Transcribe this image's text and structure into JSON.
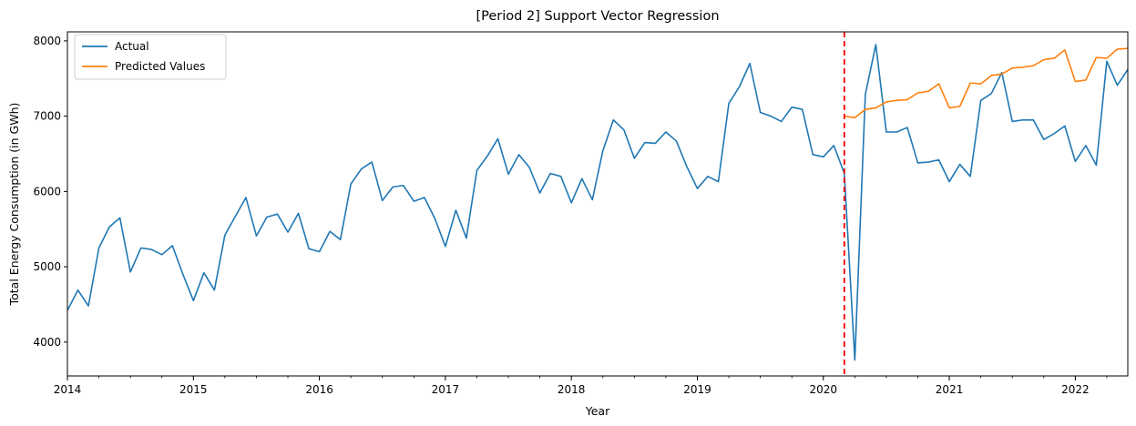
{
  "chart_data": {
    "type": "line",
    "title": "[Period 2] Support Vector Regression",
    "xlabel": "Year",
    "ylabel": "Total Energy Consumption (in GWh)",
    "x_start": "2014-01",
    "x_end": "2022-06",
    "x_ticks": [
      "2014",
      "2015",
      "2016",
      "2017",
      "2018",
      "2019",
      "2020",
      "2021",
      "2022"
    ],
    "y_ticks": [
      "4000",
      "5000",
      "6000",
      "7000",
      "8000"
    ],
    "ylim": [
      3550,
      8120
    ],
    "legend_position": "upper-left",
    "vline": {
      "x": "2020-03",
      "color": "#ff0000",
      "style": "dashed"
    },
    "series": [
      {
        "name": "Actual",
        "color": "#1f77b4",
        "start": "2014-01",
        "values": [
          4420,
          4690,
          4480,
          5250,
          5530,
          5650,
          4930,
          5250,
          5230,
          5160,
          5280,
          4900,
          4550,
          4920,
          4690,
          5420,
          5670,
          5920,
          5410,
          5660,
          5700,
          5460,
          5710,
          5240,
          5200,
          5470,
          5360,
          6100,
          6300,
          6390,
          5880,
          6060,
          6080,
          5870,
          5920,
          5640,
          5270,
          5750,
          5380,
          6280,
          6470,
          6700,
          6230,
          6490,
          6320,
          5980,
          6240,
          6200,
          5850,
          6170,
          5890,
          6540,
          6950,
          6820,
          6440,
          6650,
          6640,
          6790,
          6670,
          6330,
          6040,
          6200,
          6130,
          7170,
          7390,
          7700,
          7050,
          7000,
          6930,
          7120,
          7090,
          6490,
          6460,
          6610,
          6240,
          3760,
          7290,
          7950,
          6790,
          6790,
          6850,
          6380,
          6390,
          6420,
          6130,
          6360,
          6200,
          7210,
          7300,
          7580,
          6930,
          6950,
          6950,
          6690,
          6770,
          6870,
          6400,
          6610,
          6350,
          7730,
          7410,
          7620
        ]
      },
      {
        "name": "Predicted Values",
        "color": "#ff7f0e",
        "start": "2020-03",
        "values": [
          7000,
          6980,
          7090,
          7110,
          7190,
          7210,
          7220,
          7310,
          7330,
          7430,
          7110,
          7130,
          7440,
          7430,
          7540,
          7560,
          7640,
          7650,
          7670,
          7750,
          7770,
          7880,
          7460,
          7480,
          7780,
          7770,
          7890,
          7900
        ]
      }
    ]
  }
}
